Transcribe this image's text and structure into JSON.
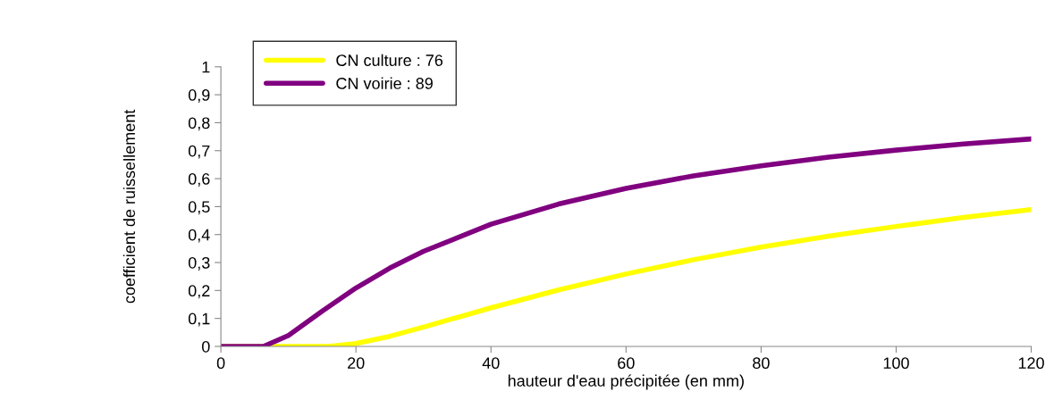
{
  "chart_data": {
    "type": "line",
    "xlabel": "hauteur d'eau précipitée (en mm)",
    "ylabel": "coefficient de ruissellement",
    "xlim": [
      0,
      120
    ],
    "xticks": [
      0,
      20,
      40,
      60,
      80,
      100,
      120
    ],
    "ylim": [
      0,
      1
    ],
    "yticks": [
      0,
      {
        "value": 0.1,
        "label": "0,1"
      },
      {
        "value": 0.2,
        "label": "0,2"
      },
      {
        "value": 0.3,
        "label": "0,3"
      },
      {
        "value": 0.4,
        "label": "0,4"
      },
      {
        "value": 0.5,
        "label": "0,5"
      },
      {
        "value": 0.6,
        "label": "0,6"
      },
      {
        "value": 0.7,
        "label": "0,7"
      },
      {
        "value": 0.8,
        "label": "0,8"
      },
      {
        "value": 0.9,
        "label": "0,9"
      },
      1
    ],
    "grid": false,
    "legend": "top left",
    "marker": "none",
    "line_style": "solid",
    "series": [
      {
        "name": "CN culture : 76",
        "color": "#ffff00",
        "x": [
          0,
          16,
          20,
          25,
          30,
          40,
          50,
          60,
          70,
          80,
          90,
          100,
          110,
          120
        ],
        "values": [
          0,
          0,
          0.01,
          0.036,
          0.069,
          0.138,
          0.202,
          0.259,
          0.31,
          0.355,
          0.394,
          0.429,
          0.461,
          0.489
        ]
      },
      {
        "name": "CN voirie : 89",
        "color": "#800080",
        "x": [
          0,
          6.3,
          10,
          15,
          20,
          25,
          30,
          40,
          50,
          60,
          70,
          80,
          90,
          100,
          110,
          120
        ],
        "values": [
          0,
          0,
          0.039,
          0.126,
          0.209,
          0.28,
          0.34,
          0.437,
          0.509,
          0.565,
          0.61,
          0.646,
          0.677,
          0.702,
          0.724,
          0.742
        ]
      }
    ]
  }
}
